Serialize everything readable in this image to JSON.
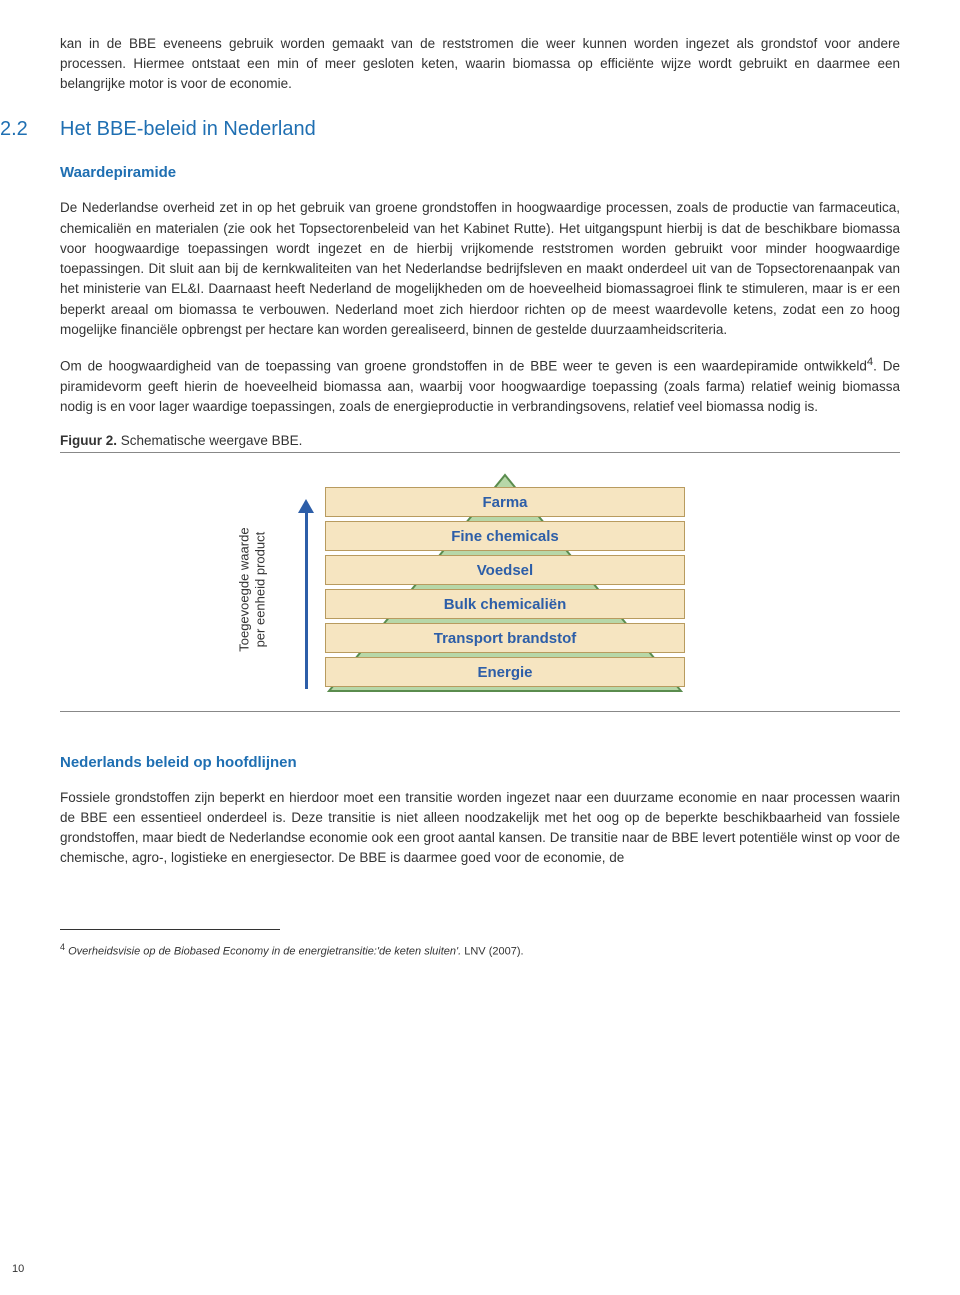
{
  "intro": "kan in de BBE eveneens gebruik worden gemaakt van de reststromen die weer kunnen worden ingezet als grondstof voor andere processen. Hiermee ontstaat een min of meer gesloten keten, waarin biomassa op efficiënte wijze wordt gebruikt en daarmee een belangrijke motor is voor de economie.",
  "section": {
    "number": "2.2",
    "title": "Het BBE-beleid in Nederland"
  },
  "sub1": {
    "heading": "Waardepiramide",
    "para1": "De Nederlandse overheid zet in op het gebruik van groene grondstoffen in hoogwaardige processen, zoals de productie van farmaceutica, chemicaliën en materialen (zie ook het Topsectorenbeleid van het Kabinet Rutte). Het uitgangspunt hierbij is dat de beschikbare biomassa voor hoogwaardige toepassingen wordt ingezet en de hierbij vrijkomende reststromen worden gebruikt voor minder hoogwaardige toepassingen. Dit sluit aan bij de kernkwaliteiten van het Nederlandse bedrijfsleven en maakt onderdeel uit van de Topsectorenaanpak van het ministerie van EL&I. Daarnaast heeft Nederland de mogelijkheden om de hoeveelheid biomassagroei flink te stimuleren, maar is er een beperkt areaal om biomassa te verbouwen. Nederland moet zich hierdoor richten op de meest waardevolle ketens, zodat een zo hoog mogelijke financiële opbrengst per hectare kan worden gerealiseerd, binnen de gestelde duurzaamheidscriteria.",
    "para2_a": "Om de hoogwaardigheid van de toepassing van groene grondstoffen in de BBE weer te geven is een waardepiramide ontwikkeld",
    "para2_sup": "4",
    "para2_b": ". De piramidevorm geeft hierin de hoeveelheid biomassa aan, waarbij voor hoogwaardige toepassing (zoals farma) relatief weinig biomassa nodig is en voor lager waardige toepassingen, zoals de energieproductie in verbrandingsovens, relatief veel biomassa nodig is."
  },
  "figure": {
    "caption_bold": "Figuur 2.",
    "caption_rest": " Schematische weergave BBE.",
    "ylabel_line1": "Toegevoegde waarde",
    "ylabel_line2": "per eenheid product",
    "triangle_fill": "#b7d7a8",
    "triangle_stroke": "#5a8c4e",
    "level_fill": "#f6e5c1",
    "level_stroke": "#b89b5f",
    "label_color": "#2d5ea8",
    "arrow_color": "#2d5ea8",
    "levels": [
      "Farma",
      "Fine chemicals",
      "Voedsel",
      "Bulk chemicaliën",
      "Transport brandstof",
      "Energie"
    ]
  },
  "sub2": {
    "heading": "Nederlands beleid op hoofdlijnen",
    "para": "Fossiele grondstoffen zijn beperkt en hierdoor moet een transitie worden ingezet naar een duurzame economie en naar processen waarin de BBE een essentieel onderdeel is. Deze transitie is niet alleen noodzakelijk met het oog op de beperkte beschikbaarheid van fossiele grondstoffen, maar biedt de Nederlandse economie ook een groot aantal kansen. De transitie naar de BBE levert potentiële winst op voor de chemische, agro-, logistieke en energiesector. De BBE is daarmee goed voor de economie, de"
  },
  "footnote": {
    "num": "4",
    "italic": "Overheidsvisie op de Biobased Economy in de energietransitie:'de keten sluiten'.",
    "rest": " LNV (2007)."
  },
  "page_number": "10"
}
